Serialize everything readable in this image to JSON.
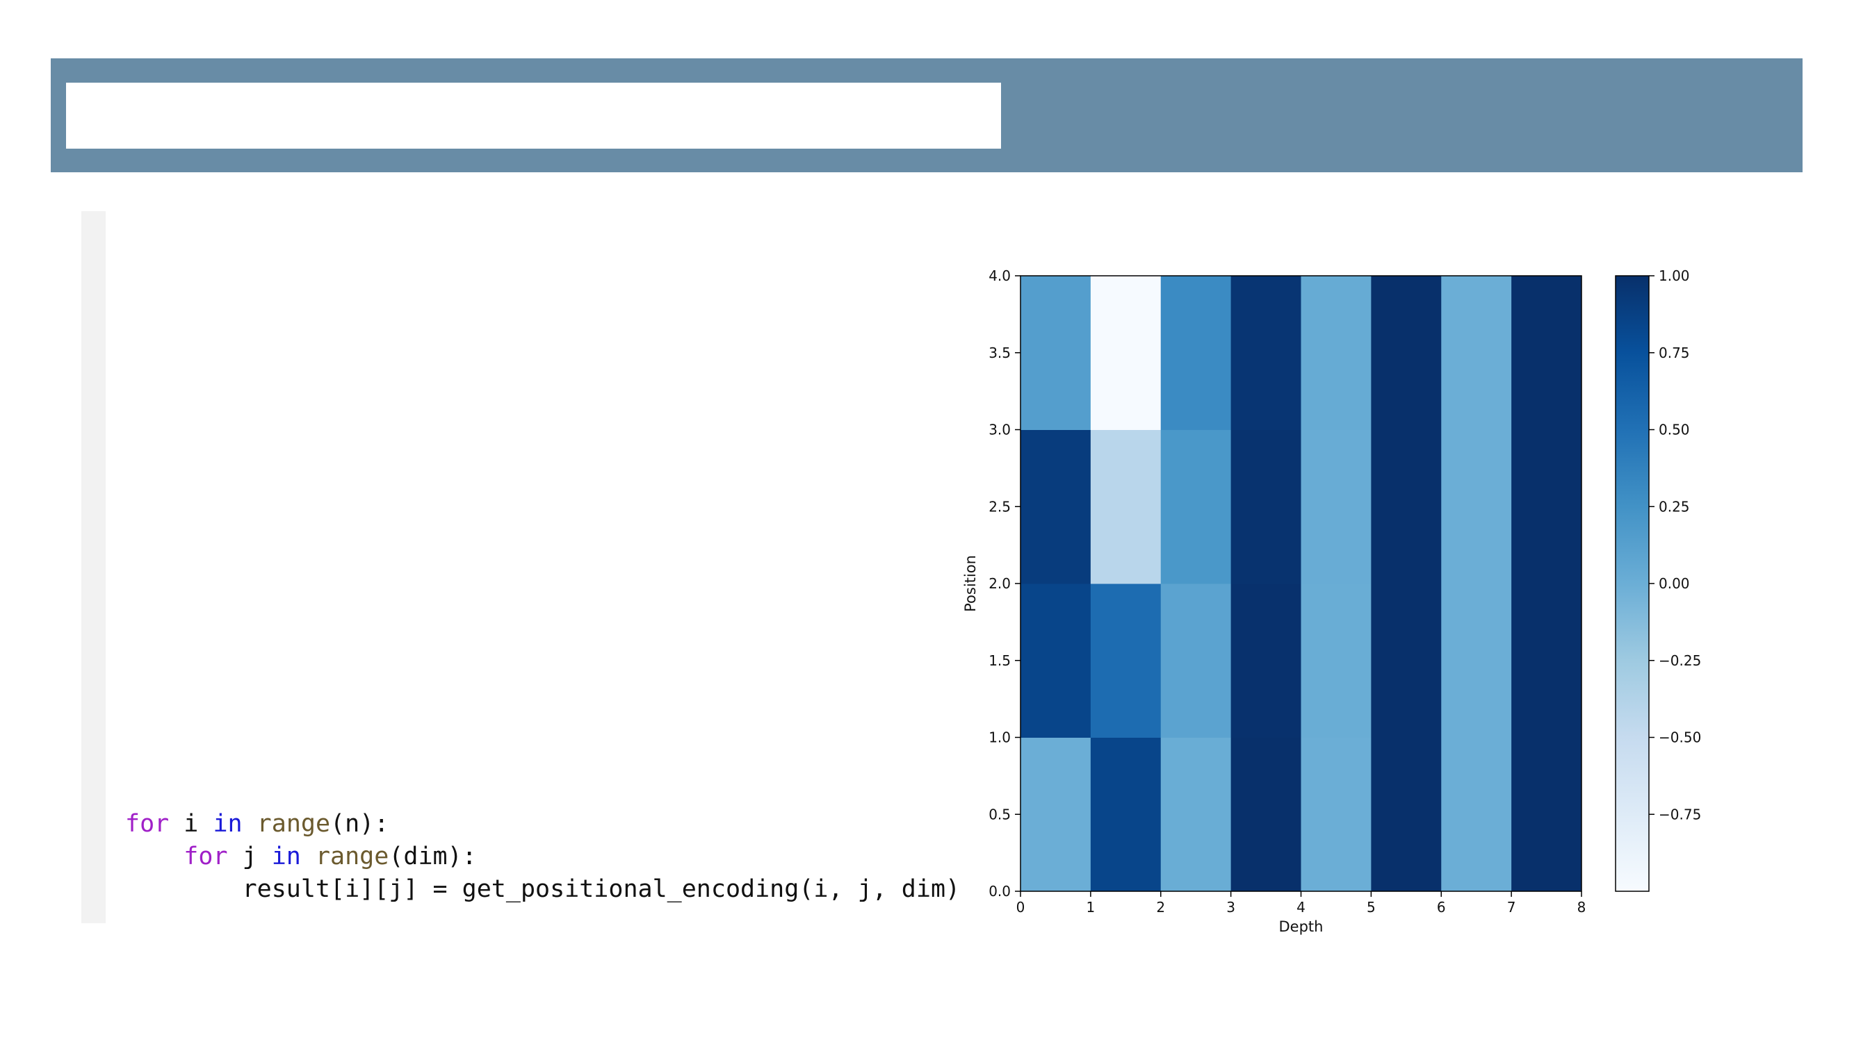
{
  "slide": {
    "colors": {
      "band": "#688ca6",
      "title_box": "#ffffff",
      "code_bar": "#f2f2f2"
    }
  },
  "code": {
    "line1": {
      "indent": "",
      "kw": "for",
      "v1": " i ",
      "op": "in",
      "sp": " ",
      "fn": "range",
      "rest": "(n):"
    },
    "line2": {
      "indent": "    ",
      "kw": "for",
      "v1": " j ",
      "op": "in",
      "sp": " ",
      "fn": "range",
      "rest": "(dim):"
    },
    "line3": {
      "indent": "        ",
      "text": "result[i][j] = get_positional_encoding(i, j, dim)"
    }
  },
  "chart_data": {
    "type": "heatmap",
    "colormap": "Blues",
    "xlabel": "Depth",
    "ylabel": "Position",
    "xlim": [
      0,
      8
    ],
    "ylim": [
      0,
      4
    ],
    "x_ticks": [
      "0",
      "1",
      "2",
      "3",
      "4",
      "5",
      "6",
      "7",
      "8"
    ],
    "y_ticks": [
      "0.0",
      "0.5",
      "1.0",
      "1.5",
      "2.0",
      "2.5",
      "3.0",
      "3.5",
      "4.0"
    ],
    "values": [
      [
        0.0,
        0.84,
        0.01,
        1.0,
        0.0,
        1.0,
        0.0,
        1.0
      ],
      [
        0.84,
        0.54,
        0.1,
        0.99,
        0.01,
        1.0,
        0.0,
        1.0
      ],
      [
        0.91,
        -0.42,
        0.2,
        0.98,
        0.02,
        1.0,
        0.0,
        1.0
      ],
      [
        0.14,
        -0.99,
        0.3,
        0.96,
        0.03,
        1.0,
        0.0,
        1.0
      ]
    ],
    "colorbar": {
      "min": -1.0,
      "max": 1.0,
      "ticks": [
        1.0,
        0.75,
        0.5,
        0.25,
        0.0,
        -0.25,
        -0.5,
        -0.75
      ],
      "tick_labels": [
        "1.00",
        "0.75",
        "0.50",
        "0.25",
        "0.00",
        "−0.25",
        "−0.50",
        "−0.75"
      ]
    }
  }
}
